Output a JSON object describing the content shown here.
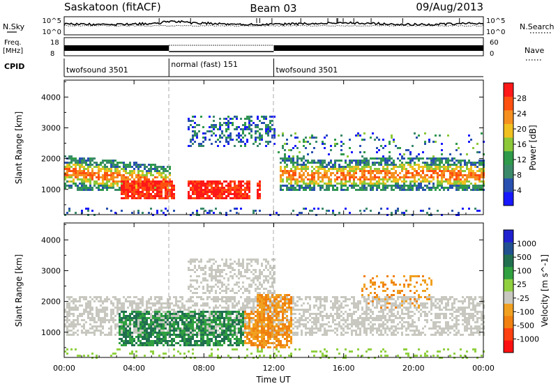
{
  "header": {
    "station": "Saskatoon (fitACF)",
    "beam": "Beam 03",
    "date": "09/Aug/2013"
  },
  "noise_panel": {
    "left_label": "N.Sky",
    "right_label": "N.Search",
    "left_ticks": [
      "10^5",
      "10^0"
    ],
    "right_ticks": [
      "10^5",
      "10^0"
    ]
  },
  "freq_panel": {
    "left_label_line1": "Freq.",
    "left_label_line2": "[MHz]",
    "right_label": "Nave",
    "left_ticks": [
      "18",
      "8"
    ],
    "right_ticks": [
      "60",
      "0"
    ]
  },
  "cpid": {
    "label": "CPID",
    "segments": [
      {
        "name": "twofsound 3501",
        "start_h": 0,
        "end_h": 6
      },
      {
        "name": "normal (fast) 151",
        "start_h": 6,
        "end_h": 12
      },
      {
        "name": "twofsound 3501",
        "start_h": 12,
        "end_h": 24
      }
    ]
  },
  "axes": {
    "xlabel": "Time UT",
    "xticks": [
      "00:00",
      "04:00",
      "08:00",
      "12:00",
      "16:00",
      "20:00",
      "00:00"
    ],
    "ylabel": "Slant Range [km]",
    "yticks": [
      "1000",
      "2000",
      "3000",
      "4000"
    ],
    "ylim_km": [
      180,
      4550
    ],
    "xlim_h": [
      0,
      24
    ]
  },
  "chart_data": [
    {
      "type": "heatmap",
      "quantity": "Power",
      "colorbar_label": "Power [dB]",
      "colorbar_ticks": [
        "4",
        "8",
        "12",
        "16",
        "20",
        "24",
        "28"
      ],
      "colorbar_range": [
        0,
        32
      ],
      "colors": [
        "#1818ff",
        "#2850b0",
        "#3a8a6a",
        "#2e9a4a",
        "#8cc838",
        "#f0c020",
        "#f59020",
        "#ff5010",
        "#ff1818"
      ],
      "mode_change_markers_h": [
        6,
        12
      ]
    },
    {
      "type": "heatmap",
      "quantity": "Velocity",
      "colorbar_label": "Velocity [m s^-1]",
      "colorbar_ticks": [
        "1000",
        "500",
        "100",
        "25",
        "-25",
        "-100",
        "-500",
        "-1000"
      ],
      "colors": [
        "#2020d0",
        "#205090",
        "#207050",
        "#30a040",
        "#90d040",
        "#c8c8c0",
        "#f0a020",
        "#f08010",
        "#ff4010",
        "#ff1010"
      ],
      "mode_change_markers_h": [
        6,
        12
      ]
    }
  ]
}
